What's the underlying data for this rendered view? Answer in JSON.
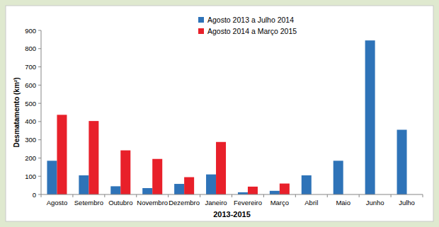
{
  "chart_data": {
    "type": "bar",
    "x_label": "2013-2015",
    "y_label": "Desmatamento (km²)",
    "categories": [
      "Agosto",
      "Setembro",
      "Outubro",
      "Novembro",
      "Dezembro",
      "Janeiro",
      "Fevereiro",
      "Março",
      "Abril",
      "Maio",
      "Junho",
      "Julho"
    ],
    "series": [
      {
        "name": "Agosto 2013 a Julho 2014",
        "color": "#2e73b8",
        "values": [
          185,
          105,
          45,
          35,
          58,
          110,
          12,
          20,
          105,
          185,
          845,
          355
        ]
      },
      {
        "name": "Agosto 2014 a Março 2015",
        "color": "#e8202a",
        "values": [
          437,
          403,
          242,
          195,
          95,
          288,
          43,
          60,
          null,
          null,
          null,
          null
        ]
      }
    ],
    "ylim": [
      0,
      900
    ],
    "yticks": [
      0,
      100,
      200,
      300,
      400,
      500,
      600,
      700,
      800,
      900
    ],
    "grid": false,
    "legend": "top"
  }
}
